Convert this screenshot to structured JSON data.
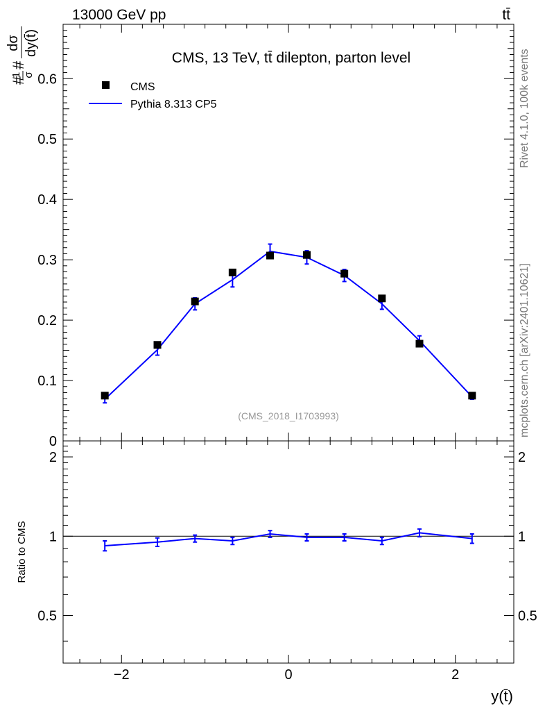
{
  "chart_data": {
    "type": "scatter+line",
    "header_left": "13000 GeV pp",
    "header_right": "tt̄",
    "title": "CMS, 13 TeV, tt̄ dilepton, parton level",
    "ylabel_parts": {
      "prefix": "#",
      "numerator": "1",
      "sigma": "σ",
      "mid": "#",
      "frac_num": "dσ",
      "frac_den": "dy(t̄)"
    },
    "xlabel": "y(t̄)",
    "ratio_ylabel": "Ratio to CMS",
    "watermark": "(CMS_2018_I1703993)",
    "side_text_top": "Rivet 4.1.0,  100k events",
    "side_text_bottom": "mcplots.cern.ch [arXiv:2401.10621]",
    "legend": [
      {
        "name": "CMS",
        "marker": "square",
        "color": "#000000"
      },
      {
        "name": "Pythia 8.313 CP5",
        "marker": "line",
        "color": "#0000ff"
      }
    ],
    "xlim": [
      -2.7,
      2.7
    ],
    "ylim": [
      0,
      0.69
    ],
    "ratio_ylim": [
      0.33,
      2.3
    ],
    "xticks": [
      -2,
      0,
      2
    ],
    "xtick_labels": [
      "−2",
      "0",
      "2"
    ],
    "yticks": [
      0,
      0.1,
      0.2,
      0.3,
      0.4,
      0.5,
      0.6
    ],
    "ytick_labels": [
      "0",
      "0.1",
      "0.2",
      "0.3",
      "0.4",
      "0.5",
      "0.6"
    ],
    "ratio_yticks": [
      0.5,
      1,
      2
    ],
    "ratio_ytick_labels": [
      "0.5",
      "1",
      "2"
    ],
    "x": [
      -2.2,
      -1.57,
      -1.12,
      -0.67,
      -0.22,
      0.22,
      0.67,
      1.12,
      1.57,
      2.2
    ],
    "series": [
      {
        "name": "CMS",
        "values": [
          0.075,
          0.159,
          0.231,
          0.279,
          0.307,
          0.308,
          0.277,
          0.236,
          0.161,
          0.075
        ]
      },
      {
        "name": "Pythia 8.313 CP5",
        "values": [
          0.069,
          0.151,
          0.227,
          0.267,
          0.314,
          0.304,
          0.274,
          0.227,
          0.166,
          0.073
        ],
        "errors": [
          0.006,
          0.009,
          0.01,
          0.012,
          0.012,
          0.011,
          0.01,
          0.009,
          0.008,
          0.004
        ]
      }
    ],
    "ratio": {
      "reference": 1.0,
      "values": [
        0.92,
        0.95,
        0.98,
        0.96,
        1.02,
        0.99,
        0.99,
        0.96,
        1.03,
        0.98
      ],
      "errors": [
        0.04,
        0.035,
        0.03,
        0.03,
        0.03,
        0.03,
        0.03,
        0.03,
        0.035,
        0.04
      ]
    }
  }
}
